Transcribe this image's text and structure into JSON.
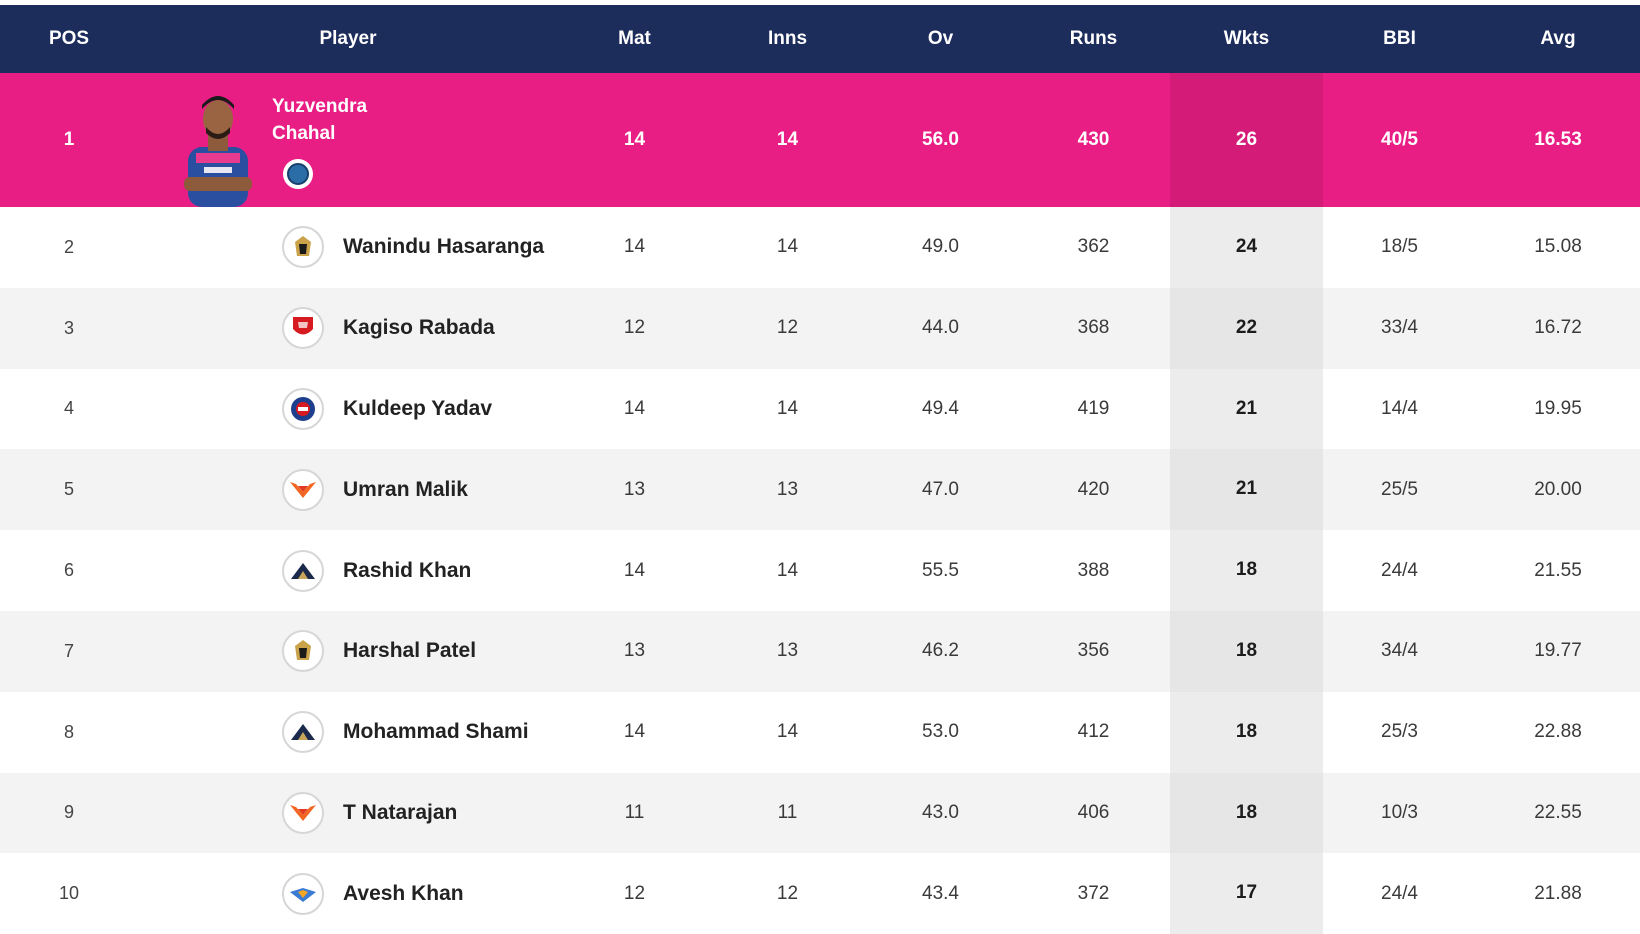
{
  "header": {
    "pos": "POS",
    "player": "Player",
    "mat": "Mat",
    "inns": "Inns",
    "ov": "Ov",
    "runs": "Runs",
    "wkts": "Wkts",
    "bbi": "BBI",
    "avg": "Avg"
  },
  "colors": {
    "header_bg": "#1c2c5b",
    "leader_bg": "#e91e84",
    "alt_row_bg": "#f3f3f3"
  },
  "leader": {
    "pos": "1",
    "name_line1": "Yuzvendra",
    "name_line2": "Chahal",
    "team_icon": "rr-team-badge-icon",
    "mat": "14",
    "inns": "14",
    "ov": "56.0",
    "runs": "430",
    "wkts": "26",
    "bbi": "40/5",
    "avg": "16.53"
  },
  "rows": [
    {
      "pos": "2",
      "name": "Wanindu Hasaranga",
      "team_icon": "rcb-logo-icon",
      "mat": "14",
      "inns": "14",
      "ov": "49.0",
      "runs": "362",
      "wkts": "24",
      "bbi": "18/5",
      "avg": "15.08"
    },
    {
      "pos": "3",
      "name": "Kagiso Rabada",
      "team_icon": "pbks-logo-icon",
      "mat": "12",
      "inns": "12",
      "ov": "44.0",
      "runs": "368",
      "wkts": "22",
      "bbi": "33/4",
      "avg": "16.72"
    },
    {
      "pos": "4",
      "name": "Kuldeep Yadav",
      "team_icon": "dc-logo-icon",
      "mat": "14",
      "inns": "14",
      "ov": "49.4",
      "runs": "419",
      "wkts": "21",
      "bbi": "14/4",
      "avg": "19.95"
    },
    {
      "pos": "5",
      "name": "Umran Malik",
      "team_icon": "srh-logo-icon",
      "mat": "13",
      "inns": "13",
      "ov": "47.0",
      "runs": "420",
      "wkts": "21",
      "bbi": "25/5",
      "avg": "20.00"
    },
    {
      "pos": "6",
      "name": "Rashid Khan",
      "team_icon": "gt-logo-icon",
      "mat": "14",
      "inns": "14",
      "ov": "55.5",
      "runs": "388",
      "wkts": "18",
      "bbi": "24/4",
      "avg": "21.55"
    },
    {
      "pos": "7",
      "name": "Harshal Patel",
      "team_icon": "rcb-logo-icon",
      "mat": "13",
      "inns": "13",
      "ov": "46.2",
      "runs": "356",
      "wkts": "18",
      "bbi": "34/4",
      "avg": "19.77"
    },
    {
      "pos": "8",
      "name": "Mohammad Shami",
      "team_icon": "gt-logo-icon",
      "mat": "14",
      "inns": "14",
      "ov": "53.0",
      "runs": "412",
      "wkts": "18",
      "bbi": "25/3",
      "avg": "22.88"
    },
    {
      "pos": "9",
      "name": "T Natarajan",
      "team_icon": "srh-logo-icon",
      "mat": "11",
      "inns": "11",
      "ov": "43.0",
      "runs": "406",
      "wkts": "18",
      "bbi": "10/3",
      "avg": "22.55"
    },
    {
      "pos": "10",
      "name": "Avesh Khan",
      "team_icon": "lsg-logo-icon",
      "mat": "12",
      "inns": "12",
      "ov": "43.4",
      "runs": "372",
      "wkts": "17",
      "bbi": "24/4",
      "avg": "21.88"
    }
  ]
}
